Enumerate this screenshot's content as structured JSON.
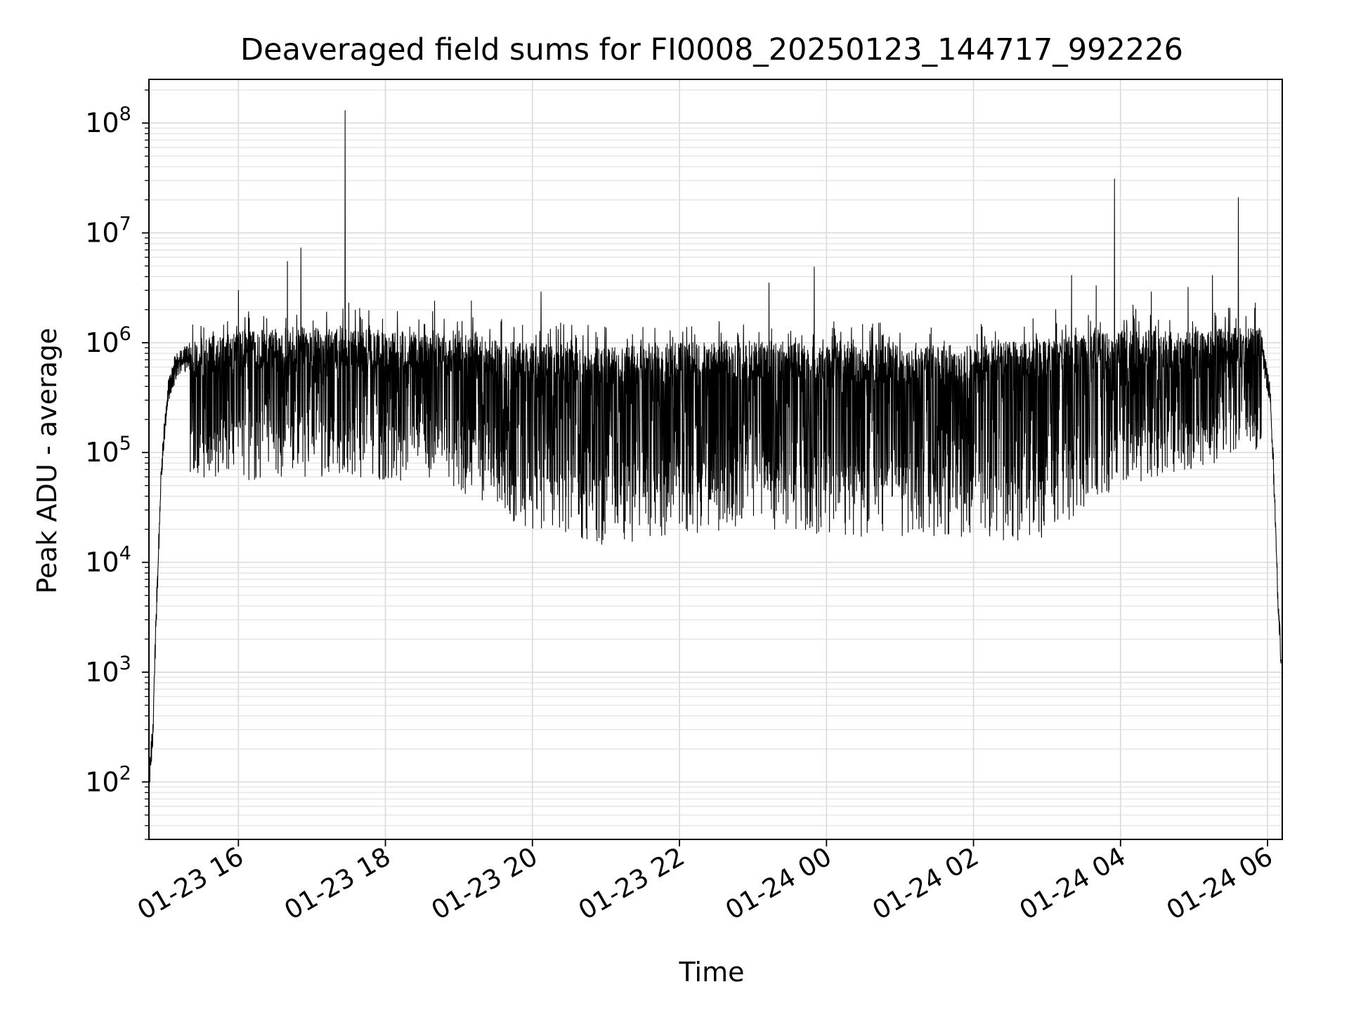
{
  "chart_data": {
    "type": "line",
    "title": "Deaveraged field sums for FI0008_20250123_144717_992226",
    "xlabel": "Time",
    "ylabel": "Peak ADU - average",
    "x_scale": "time",
    "y_scale": "log",
    "xlim": [
      "2025-01-23 14:47",
      "2025-01-24 06:12"
    ],
    "ylim": [
      30,
      250000000
    ],
    "x_ticks": [
      {
        "time": "2025-01-23 16:00",
        "label": "01-23 16"
      },
      {
        "time": "2025-01-23 18:00",
        "label": "01-23 18"
      },
      {
        "time": "2025-01-23 20:00",
        "label": "01-23 20"
      },
      {
        "time": "2025-01-23 22:00",
        "label": "01-23 22"
      },
      {
        "time": "2025-01-24 00:00",
        "label": "01-24 00"
      },
      {
        "time": "2025-01-24 02:00",
        "label": "01-24 02"
      },
      {
        "time": "2025-01-24 04:00",
        "label": "01-24 04"
      },
      {
        "time": "2025-01-24 06:00",
        "label": "01-24 06"
      }
    ],
    "y_ticks": [
      {
        "value": 100,
        "base": "10",
        "exp": "2"
      },
      {
        "value": 1000,
        "base": "10",
        "exp": "3"
      },
      {
        "value": 10000,
        "base": "10",
        "exp": "4"
      },
      {
        "value": 100000,
        "base": "10",
        "exp": "5"
      },
      {
        "value": 1000000,
        "base": "10",
        "exp": "6"
      },
      {
        "value": 10000000,
        "base": "10",
        "exp": "7"
      },
      {
        "value": 100000000,
        "base": "10",
        "exp": "8"
      }
    ],
    "grid": {
      "major": true,
      "minor_y": true
    },
    "series": [
      {
        "color": "#000000",
        "upper_envelope": [
          {
            "time": "2025-01-23 14:47",
            "value": 150
          },
          {
            "time": "2025-01-23 14:50",
            "value": 400
          },
          {
            "time": "2025-01-23 14:53",
            "value": 5000
          },
          {
            "time": "2025-01-23 14:57",
            "value": 100000
          },
          {
            "time": "2025-01-23 15:02",
            "value": 500000
          },
          {
            "time": "2025-01-23 15:10",
            "value": 1000000
          },
          {
            "time": "2025-01-23 15:30",
            "value": 1100000
          },
          {
            "time": "2025-01-23 16:00",
            "value": 1300000
          },
          {
            "time": "2025-01-23 17:00",
            "value": 1400000
          },
          {
            "time": "2025-01-23 18:00",
            "value": 1300000
          },
          {
            "time": "2025-01-23 19:00",
            "value": 1200000
          },
          {
            "time": "2025-01-23 20:00",
            "value": 1000000
          },
          {
            "time": "2025-01-23 21:00",
            "value": 900000
          },
          {
            "time": "2025-01-23 22:00",
            "value": 1000000
          },
          {
            "time": "2025-01-23 23:00",
            "value": 1050000
          },
          {
            "time": "2025-01-24 00:00",
            "value": 1000000
          },
          {
            "time": "2025-01-24 01:00",
            "value": 950000
          },
          {
            "time": "2025-01-24 02:00",
            "value": 950000
          },
          {
            "time": "2025-01-24 03:00",
            "value": 1100000
          },
          {
            "time": "2025-01-24 04:00",
            "value": 1300000
          },
          {
            "time": "2025-01-24 05:00",
            "value": 1300000
          },
          {
            "time": "2025-01-24 05:55",
            "value": 1400000
          },
          {
            "time": "2025-01-24 06:02",
            "value": 500000
          },
          {
            "time": "2025-01-24 06:05",
            "value": 100000
          },
          {
            "time": "2025-01-24 06:08",
            "value": 10000
          },
          {
            "time": "2025-01-24 06:11",
            "value": 2000
          }
        ],
        "lower_envelope": [
          {
            "time": "2025-01-23 15:20",
            "value": 60000
          },
          {
            "time": "2025-01-23 16:00",
            "value": 55000
          },
          {
            "time": "2025-01-23 17:00",
            "value": 60000
          },
          {
            "time": "2025-01-23 18:00",
            "value": 55000
          },
          {
            "time": "2025-01-23 19:00",
            "value": 45000
          },
          {
            "time": "2025-01-23 19:45",
            "value": 22000
          },
          {
            "time": "2025-01-23 20:30",
            "value": 15000
          },
          {
            "time": "2025-01-23 21:00",
            "value": 14000
          },
          {
            "time": "2025-01-23 22:00",
            "value": 18000
          },
          {
            "time": "2025-01-23 23:00",
            "value": 20000
          },
          {
            "time": "2025-01-24 00:00",
            "value": 18000
          },
          {
            "time": "2025-01-24 01:00",
            "value": 16000
          },
          {
            "time": "2025-01-24 02:00",
            "value": 16000
          },
          {
            "time": "2025-01-24 02:55",
            "value": 15000
          },
          {
            "time": "2025-01-24 03:30",
            "value": 30000
          },
          {
            "time": "2025-01-24 04:00",
            "value": 50000
          },
          {
            "time": "2025-01-24 05:00",
            "value": 70000
          },
          {
            "time": "2025-01-24 05:55",
            "value": 100000
          }
        ],
        "spikes": [
          {
            "time": "2025-01-23 16:00",
            "value": 3000000
          },
          {
            "time": "2025-01-23 16:40",
            "value": 5500000
          },
          {
            "time": "2025-01-23 16:51",
            "value": 7300000
          },
          {
            "time": "2025-01-23 17:27",
            "value": 130000000
          },
          {
            "time": "2025-01-23 17:30",
            "value": 2300000
          },
          {
            "time": "2025-01-23 18:40",
            "value": 2400000
          },
          {
            "time": "2025-01-23 19:10",
            "value": 2400000
          },
          {
            "time": "2025-01-23 20:07",
            "value": 2900000
          },
          {
            "time": "2025-01-23 23:13",
            "value": 3500000
          },
          {
            "time": "2025-01-23 23:50",
            "value": 4900000
          },
          {
            "time": "2025-01-24 03:07",
            "value": 2000000
          },
          {
            "time": "2025-01-24 03:20",
            "value": 4100000
          },
          {
            "time": "2025-01-24 03:40",
            "value": 3300000
          },
          {
            "time": "2025-01-24 03:55",
            "value": 31000000
          },
          {
            "time": "2025-01-24 04:10",
            "value": 2200000
          },
          {
            "time": "2025-01-24 04:25",
            "value": 2900000
          },
          {
            "time": "2025-01-24 04:55",
            "value": 3200000
          },
          {
            "time": "2025-01-24 05:15",
            "value": 4100000
          },
          {
            "time": "2025-01-24 05:36",
            "value": 21000000
          },
          {
            "time": "2025-01-24 05:50",
            "value": 2300000
          }
        ]
      }
    ]
  }
}
